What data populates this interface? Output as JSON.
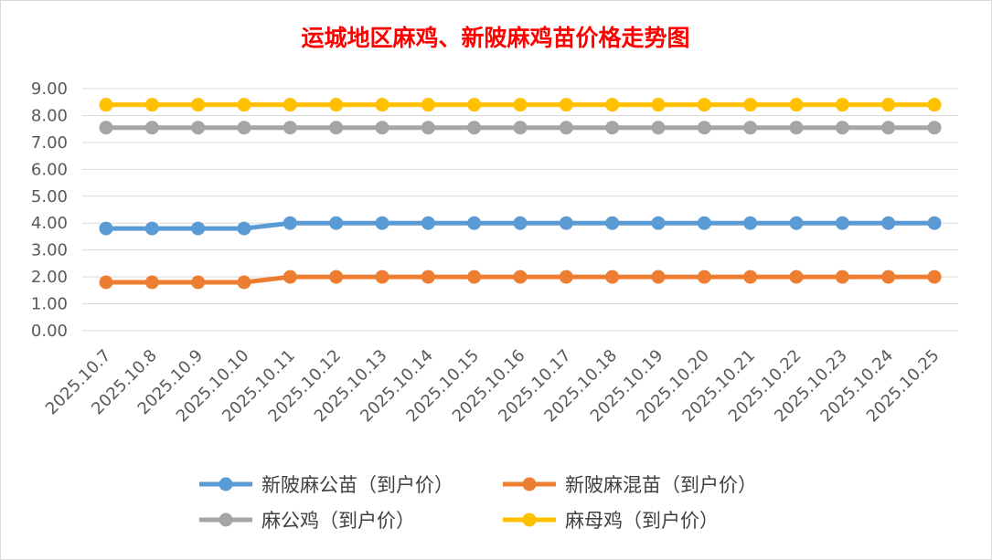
{
  "chart_data": {
    "type": "line",
    "title": "运城地区麻鸡、新陂麻鸡苗价格走势图",
    "xlabel": "",
    "ylabel": "",
    "ylim": [
      0,
      9
    ],
    "yticks": [
      "0.00",
      "1.00",
      "2.00",
      "3.00",
      "4.00",
      "5.00",
      "6.00",
      "7.00",
      "8.00",
      "9.00"
    ],
    "grid": true,
    "legend_position": "bottom",
    "categories": [
      "2025.10.7",
      "2025.10.8",
      "2025.10.9",
      "2025.10.10",
      "2025.10.11",
      "2025.10.12",
      "2025.10.13",
      "2025.10.14",
      "2025.10.15",
      "2025.10.16",
      "2025.10.17",
      "2025.10.18",
      "2025.10.19",
      "2025.10.20",
      "2025.10.21",
      "2025.10.22",
      "2025.10.23",
      "2025.10.24",
      "2025.10.25"
    ],
    "series": [
      {
        "name": "新陂麻公苗（到户价）",
        "color": "#5b9bd5",
        "values": [
          3.8,
          3.8,
          3.8,
          3.8,
          4.0,
          4.0,
          4.0,
          4.0,
          4.0,
          4.0,
          4.0,
          4.0,
          4.0,
          4.0,
          4.0,
          4.0,
          4.0,
          4.0,
          4.0
        ]
      },
      {
        "name": "新陂麻混苗（到户价）",
        "color": "#ed7d31",
        "values": [
          1.8,
          1.8,
          1.8,
          1.8,
          2.0,
          2.0,
          2.0,
          2.0,
          2.0,
          2.0,
          2.0,
          2.0,
          2.0,
          2.0,
          2.0,
          2.0,
          2.0,
          2.0,
          2.0
        ]
      },
      {
        "name": "麻公鸡（到户价）",
        "color": "#a5a5a5",
        "values": [
          7.55,
          7.55,
          7.55,
          7.55,
          7.55,
          7.55,
          7.55,
          7.55,
          7.55,
          7.55,
          7.55,
          7.55,
          7.55,
          7.55,
          7.55,
          7.55,
          7.55,
          7.55,
          7.55
        ]
      },
      {
        "name": "麻母鸡（到户价）",
        "color": "#ffc000",
        "values": [
          8.4,
          8.4,
          8.4,
          8.4,
          8.4,
          8.4,
          8.4,
          8.4,
          8.4,
          8.4,
          8.4,
          8.4,
          8.4,
          8.4,
          8.4,
          8.4,
          8.4,
          8.4,
          8.4
        ]
      }
    ]
  }
}
